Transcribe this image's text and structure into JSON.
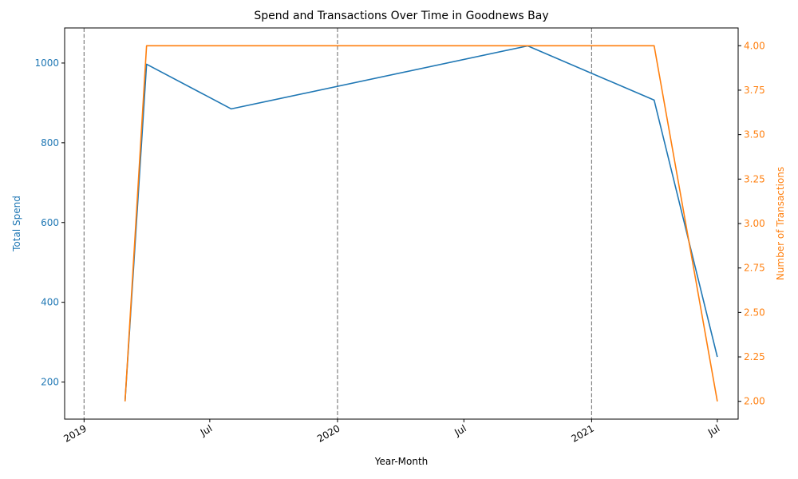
{
  "chart_data": {
    "type": "line",
    "title": "Spend and Transactions Over Time in Goodnews Bay",
    "xlabel": "Year-Month",
    "ylabel_left": "Total Spend",
    "ylabel_right": "Number of Transactions",
    "x_range": [
      "2018-12-04",
      "2021-07-31"
    ],
    "y_left_range": [
      107,
      1088
    ],
    "y_right_range": [
      1.9,
      4.1
    ],
    "x_ticks": [
      {
        "date": "2019-01-01",
        "label": "2019"
      },
      {
        "date": "2019-07-01",
        "label": "Jul"
      },
      {
        "date": "2020-01-01",
        "label": "2020"
      },
      {
        "date": "2020-07-01",
        "label": "Jul"
      },
      {
        "date": "2021-01-01",
        "label": "2021"
      },
      {
        "date": "2021-07-01",
        "label": "Jul"
      }
    ],
    "y_left_ticks": [
      200,
      400,
      600,
      800,
      1000
    ],
    "y_right_ticks": [
      2.0,
      2.25,
      2.5,
      2.75,
      3.0,
      3.25,
      3.5,
      3.75,
      4.0
    ],
    "year_lines": [
      "2019-01-01",
      "2020-01-01",
      "2021-01-01"
    ],
    "grid": false,
    "series": [
      {
        "name": "Total Spend",
        "axis": "left",
        "color": "#1f77b4",
        "points": [
          {
            "x": "2019-03-01",
            "y": 152
          },
          {
            "x": "2019-04-01",
            "y": 997
          },
          {
            "x": "2019-08-01",
            "y": 885
          },
          {
            "x": "2020-10-01",
            "y": 1043
          },
          {
            "x": "2021-04-01",
            "y": 907
          },
          {
            "x": "2021-07-01",
            "y": 263
          }
        ]
      },
      {
        "name": "Number of Transactions",
        "axis": "right",
        "color": "#ff7f0e",
        "points": [
          {
            "x": "2019-03-01",
            "y": 2
          },
          {
            "x": "2019-04-01",
            "y": 4
          },
          {
            "x": "2019-08-01",
            "y": 4
          },
          {
            "x": "2020-10-01",
            "y": 4
          },
          {
            "x": "2021-04-01",
            "y": 4
          },
          {
            "x": "2021-07-01",
            "y": 2
          }
        ]
      }
    ]
  }
}
